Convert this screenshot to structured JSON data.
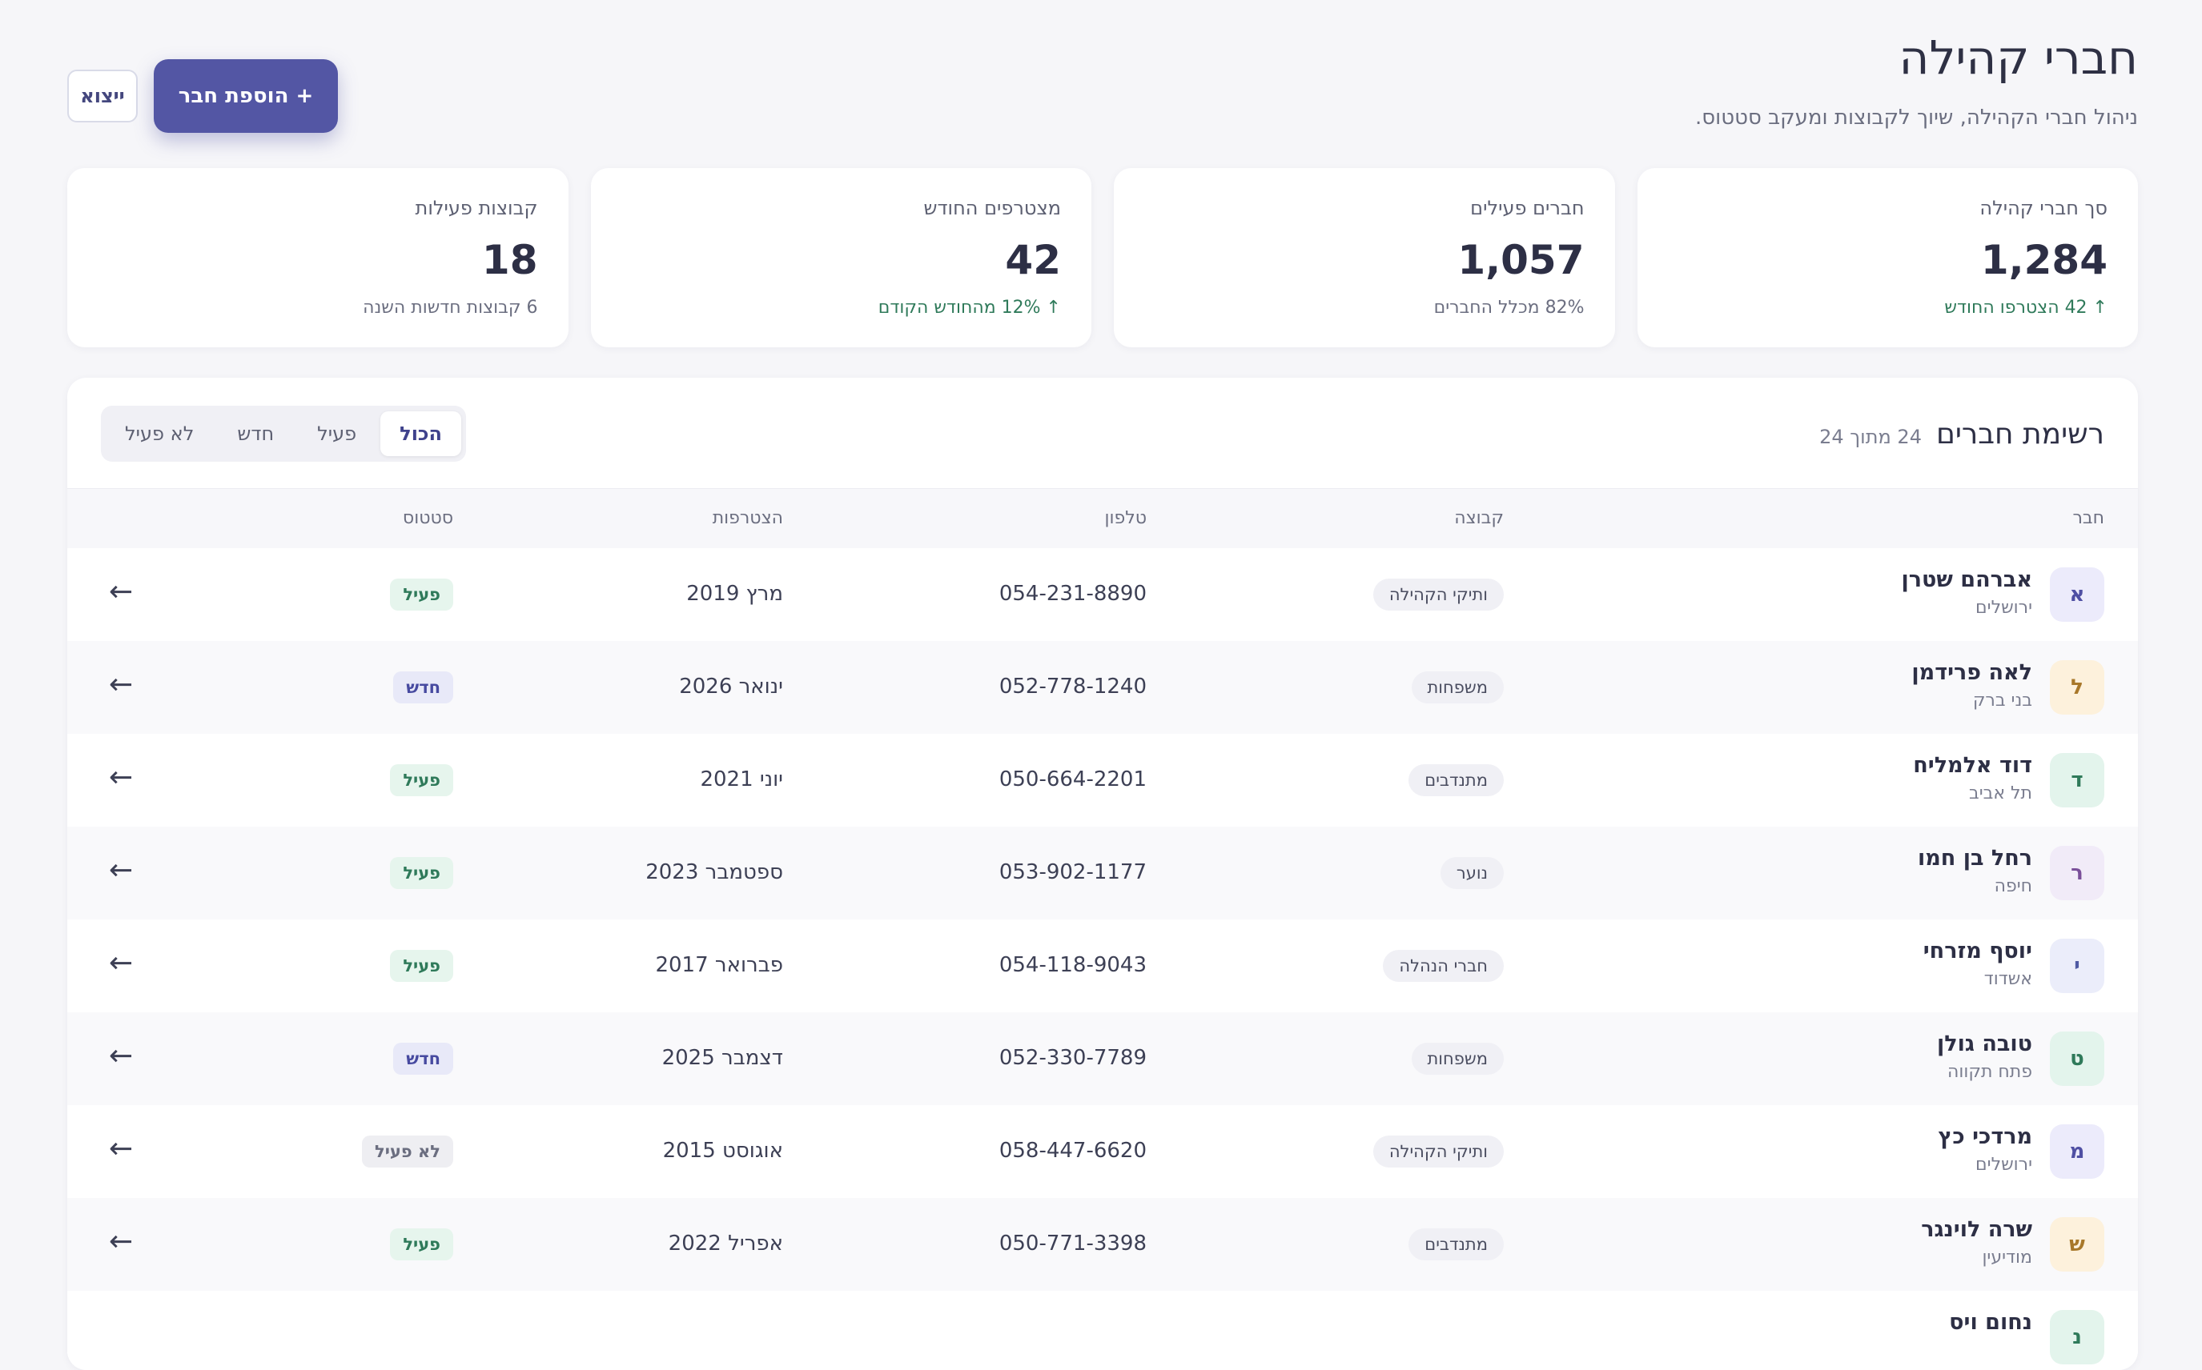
{
  "header": {
    "title": "חברי קהילה",
    "subtitle": "ניהול חברי הקהילה, שיוך לקבוצות ומעקב סטטוס.",
    "add_button": "+ הוספת חבר",
    "export_button": "ייצוא"
  },
  "stats": [
    {
      "label": "סך חברי קהילה",
      "value": "1,284",
      "note": "↑ 42 הצטרפו החודש"
    },
    {
      "label": "חברים פעילים",
      "value": "1,057",
      "note": "82% מכלל החברים"
    },
    {
      "label": "מצטרפים החודש",
      "value": "42",
      "note": "↑ 12% מהחודש הקודם"
    },
    {
      "label": "קבוצות פעילות",
      "value": "18",
      "note": "6 קבוצות חדשות השנה"
    }
  ],
  "table": {
    "title": "רשימת חברים",
    "count": "24 מתוך 24",
    "filters": [
      "הכול",
      "פעיל",
      "חדש",
      "לא פעיל"
    ],
    "columns": {
      "member": "חבר",
      "group": "קבוצה",
      "phone": "טלפון",
      "joined": "הצטרפות",
      "status": "סטטוס"
    },
    "row_action_icon": "arrow-left-icon",
    "rows": [
      {
        "initial": "א",
        "name": "אברהם שטרן",
        "city": "ירושלים",
        "group": "ותיקי הקהילה",
        "phone": "054-231-8890",
        "joined": "מרץ 2019",
        "status": "פעיל",
        "avatar_bg": "#ecebfb",
        "avatar_fg": "#4f4fa3"
      },
      {
        "initial": "ל",
        "name": "לאה פרידמן",
        "city": "בני ברק",
        "group": "משפחות",
        "phone": "052-778-1240",
        "joined": "ינואר 2026",
        "status": "חדש",
        "avatar_bg": "#fdf1dc",
        "avatar_fg": "#a8782a"
      },
      {
        "initial": "ד",
        "name": "דוד אלמליח",
        "city": "תל אביב",
        "group": "מתנדבים",
        "phone": "050-664-2201",
        "joined": "יוני 2021",
        "status": "פעיל",
        "avatar_bg": "#e3f4ec",
        "avatar_fg": "#2f7a5a"
      },
      {
        "initial": "ר",
        "name": "רחל בן חמו",
        "city": "חיפה",
        "group": "נוער",
        "phone": "053-902-1177",
        "joined": "ספטמבר 2023",
        "status": "פעיל",
        "avatar_bg": "#f1ebf8",
        "avatar_fg": "#7a4f9a"
      },
      {
        "initial": "י",
        "name": "יוסף מזרחי",
        "city": "אשדוד",
        "group": "חברי הנהלה",
        "phone": "054-118-9043",
        "joined": "פברואר 2017",
        "status": "פעיל",
        "avatar_bg": "#ebedfa",
        "avatar_fg": "#4f5aa3"
      },
      {
        "initial": "ט",
        "name": "טובה גולן",
        "city": "פתח תקווה",
        "group": "משפחות",
        "phone": "052-330-7789",
        "joined": "דצמבר 2025",
        "status": "חדש",
        "avatar_bg": "#e3f4ec",
        "avatar_fg": "#2f7a5a"
      },
      {
        "initial": "מ",
        "name": "מרדכי כץ",
        "city": "ירושלים",
        "group": "ותיקי הקהילה",
        "phone": "058-447-6620",
        "joined": "אוגוסט 2015",
        "status": "לא פעיל",
        "avatar_bg": "#ecebfb",
        "avatar_fg": "#4f4fa3"
      },
      {
        "initial": "ש",
        "name": "שרה לוינגר",
        "city": "מודיעין",
        "group": "מתנדבים",
        "phone": "050-771-3398",
        "joined": "אפריל 2022",
        "status": "פעיל",
        "avatar_bg": "#fdf1dc",
        "avatar_fg": "#a8782a"
      },
      {
        "initial": "נ",
        "name": "נחום ויס",
        "city": "",
        "group": "",
        "phone": "",
        "joined": "",
        "status": "",
        "avatar_bg": "#e3f4ec",
        "avatar_fg": "#2f7a5a"
      }
    ]
  },
  "colors": {
    "accent": "#5356a4",
    "active_status": "#2f7a5a",
    "new_status": "#474aa0"
  }
}
